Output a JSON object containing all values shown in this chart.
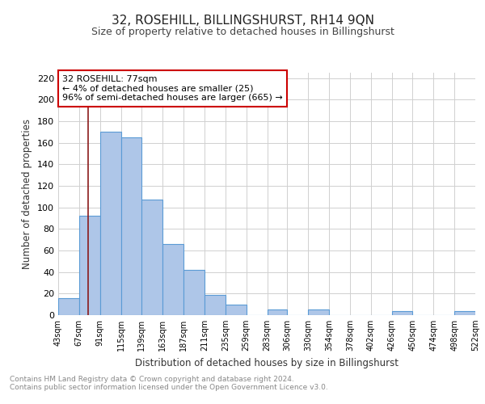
{
  "title": "32, ROSEHILL, BILLINGSHURST, RH14 9QN",
  "subtitle": "Size of property relative to detached houses in Billingshurst",
  "xlabel": "Distribution of detached houses by size in Billingshurst",
  "ylabel": "Number of detached properties",
  "bin_edges": [
    43,
    67,
    91,
    115,
    139,
    163,
    187,
    211,
    235,
    259,
    283,
    306,
    330,
    354,
    378,
    402,
    426,
    450,
    474,
    498,
    522
  ],
  "bin_labels": [
    "43sqm",
    "67sqm",
    "91sqm",
    "115sqm",
    "139sqm",
    "163sqm",
    "187sqm",
    "211sqm",
    "235sqm",
    "259sqm",
    "283sqm",
    "306sqm",
    "330sqm",
    "354sqm",
    "378sqm",
    "402sqm",
    "426sqm",
    "450sqm",
    "474sqm",
    "498sqm",
    "522sqm"
  ],
  "counts": [
    16,
    92,
    170,
    165,
    107,
    66,
    42,
    19,
    10,
    0,
    5,
    0,
    5,
    0,
    0,
    0,
    4,
    0,
    0,
    4
  ],
  "bar_color": "#aec6e8",
  "bar_edge_color": "#5b9bd5",
  "vline_x": 77,
  "vline_color": "#8b1a1a",
  "annotation_title": "32 ROSEHILL: 77sqm",
  "annotation_line1": "← 4% of detached houses are smaller (25)",
  "annotation_line2": "96% of semi-detached houses are larger (665) →",
  "annotation_box_color": "#ffffff",
  "annotation_box_edge": "#cc0000",
  "ylim": [
    0,
    225
  ],
  "yticks": [
    0,
    20,
    40,
    60,
    80,
    100,
    120,
    140,
    160,
    180,
    200,
    220
  ],
  "footer1": "Contains HM Land Registry data © Crown copyright and database right 2024.",
  "footer2": "Contains public sector information licensed under the Open Government Licence v3.0.",
  "bg_color": "#ffffff",
  "grid_color": "#d0d0d0"
}
